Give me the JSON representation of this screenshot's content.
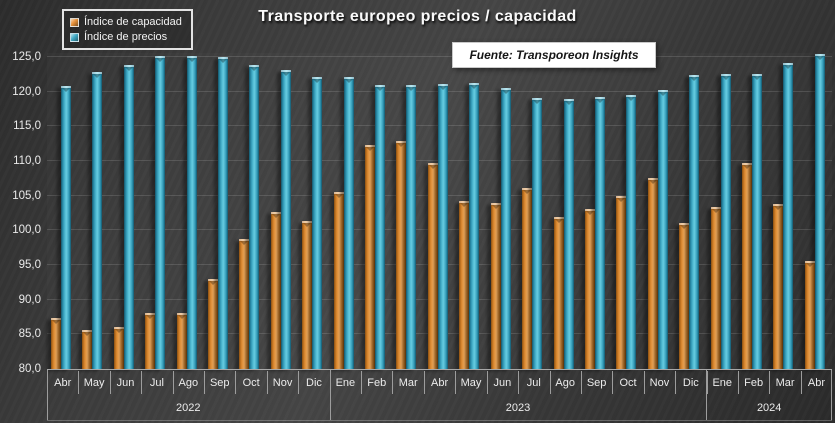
{
  "title": "Transporte europeo precios / capacidad",
  "source_label": "Fuente: Transporeon Insights",
  "legend": {
    "items": [
      {
        "label": "Índice de capacidad",
        "key": "capacidad",
        "color": "#E8923A"
      },
      {
        "label": "Índice de precios",
        "key": "precios",
        "color": "#41ABC7"
      }
    ]
  },
  "colors": {
    "capacity_bar": "#E8923A",
    "price_bar": "#41ABC7",
    "background": "#3A3A3A",
    "text": "#ECECEC",
    "gridline": "#5C5C5C"
  },
  "chart_data": {
    "type": "bar",
    "title": "Transporte europeo precios / capacidad",
    "x_groups": [
      {
        "year": "2022",
        "months": [
          "Abr",
          "May",
          "Jun",
          "Jul",
          "Ago",
          "Sep",
          "Oct",
          "Nov",
          "Dic"
        ]
      },
      {
        "year": "2023",
        "months": [
          "Ene",
          "Feb",
          "Mar",
          "Abr",
          "May",
          "Jun",
          "Jul",
          "Ago",
          "Sep",
          "Oct",
          "Nov",
          "Dic"
        ]
      },
      {
        "year": "2024",
        "months": [
          "Ene",
          "Feb",
          "Mar",
          "Abr"
        ]
      }
    ],
    "series": [
      {
        "name": "Índice de capacidad",
        "color": "#E8923A",
        "values": [
          87.4,
          85.6,
          86.0,
          88.1,
          88.1,
          93.0,
          98.7,
          102.6,
          101.3,
          105.6,
          112.3,
          112.9,
          109.8,
          104.3,
          103.9,
          106.1,
          102.0,
          103.1,
          104.9,
          107.6,
          101.0,
          103.4,
          109.7,
          103.8,
          95.6
        ]
      },
      {
        "name": "Índice de precios",
        "color": "#41ABC7",
        "values": [
          120.8,
          122.9,
          123.9,
          125.1,
          125.2,
          125.0,
          123.8,
          123.1,
          122.2,
          122.1,
          121.0,
          121.0,
          121.2,
          121.3,
          120.6,
          119.1,
          119.0,
          119.2,
          119.6,
          120.2,
          122.4,
          122.5,
          122.6,
          124.1,
          125.4
        ]
      }
    ],
    "ylim": [
      80,
      125
    ],
    "ytick_values": [
      80,
      85,
      90,
      95,
      100,
      105,
      110,
      115,
      120,
      125
    ],
    "ytick_labels": [
      "80,0",
      "85,0",
      "90,0",
      "95,0",
      "100,0",
      "105,0",
      "110,0",
      "115,0",
      "120,0",
      "125,0"
    ],
    "grid": true,
    "legend_position": "top-left"
  }
}
